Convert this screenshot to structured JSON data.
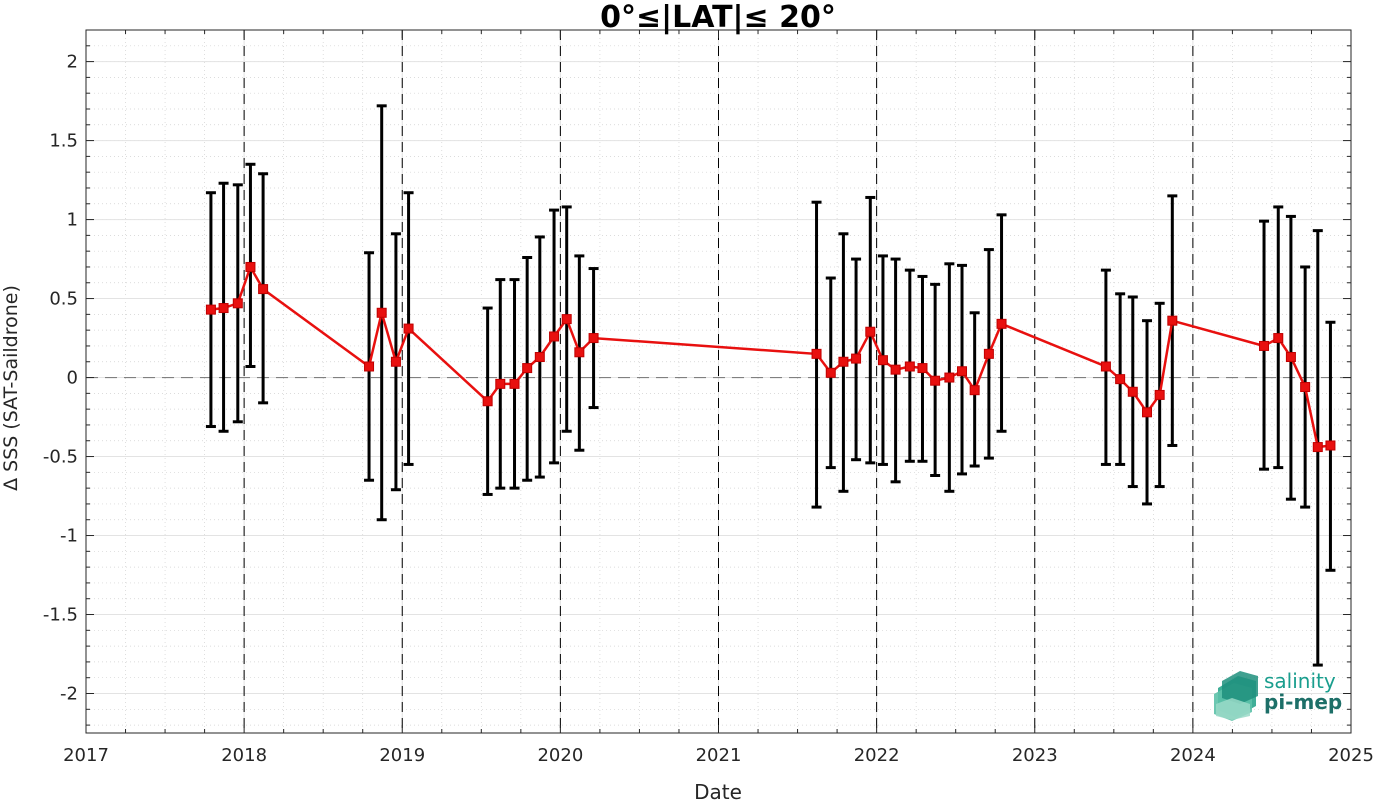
{
  "chart_data": {
    "type": "line",
    "title": "0°≤|LAT|≤ 20°",
    "xlabel": "Date",
    "ylabel": "Δ SSS (SAT-Saildrone)",
    "xlim": [
      2017,
      2025
    ],
    "ylim": [
      -2.25,
      2.2
    ],
    "xticks": [
      "2017",
      "2018",
      "2019",
      "2020",
      "2021",
      "2022",
      "2023",
      "2024",
      "2025"
    ],
    "yticks": [
      "2",
      "1.5",
      "1",
      "0.5",
      "0",
      "-0.5",
      "-1",
      "-1.5",
      "-2"
    ],
    "grid": true,
    "zero_line": 0,
    "year_boundaries": [
      "2018",
      "2019",
      "2020",
      "2021",
      "2022",
      "2023",
      "2024"
    ],
    "colors": {
      "series": "#e8100f",
      "errorbar": "#000000",
      "zero_line": "#808080",
      "boundary": "#000000"
    },
    "series": [
      {
        "points": [
          {
            "x": 2017.79,
            "y": 0.43,
            "low": -0.31,
            "high": 1.17
          },
          {
            "x": 2017.87,
            "y": 0.44,
            "low": -0.34,
            "high": 1.23
          },
          {
            "x": 2017.96,
            "y": 0.47,
            "low": -0.28,
            "high": 1.22
          },
          {
            "x": 2018.04,
            "y": 0.7,
            "low": 0.07,
            "high": 1.35
          },
          {
            "x": 2018.12,
            "y": 0.56,
            "low": -0.16,
            "high": 1.29
          },
          {
            "x": 2018.79,
            "y": 0.07,
            "low": -0.65,
            "high": 0.79
          },
          {
            "x": 2018.87,
            "y": 0.41,
            "low": -0.9,
            "high": 1.72
          },
          {
            "x": 2018.96,
            "y": 0.1,
            "low": -0.71,
            "high": 0.91
          },
          {
            "x": 2019.04,
            "y": 0.31,
            "low": -0.55,
            "high": 1.17
          },
          {
            "x": 2019.54,
            "y": -0.15,
            "low": -0.74,
            "high": 0.44
          },
          {
            "x": 2019.62,
            "y": -0.04,
            "low": -0.7,
            "high": 0.62
          },
          {
            "x": 2019.71,
            "y": -0.04,
            "low": -0.7,
            "high": 0.62
          },
          {
            "x": 2019.79,
            "y": 0.06,
            "low": -0.65,
            "high": 0.76
          },
          {
            "x": 2019.87,
            "y": 0.13,
            "low": -0.63,
            "high": 0.89
          },
          {
            "x": 2019.96,
            "y": 0.26,
            "low": -0.54,
            "high": 1.06
          },
          {
            "x": 2020.04,
            "y": 0.37,
            "low": -0.34,
            "high": 1.08
          },
          {
            "x": 2020.12,
            "y": 0.16,
            "low": -0.46,
            "high": 0.77
          },
          {
            "x": 2020.21,
            "y": 0.25,
            "low": -0.19,
            "high": 0.69
          },
          {
            "x": 2021.62,
            "y": 0.15,
            "low": -0.82,
            "high": 1.11
          },
          {
            "x": 2021.71,
            "y": 0.03,
            "low": -0.57,
            "high": 0.63
          },
          {
            "x": 2021.79,
            "y": 0.1,
            "low": -0.72,
            "high": 0.91
          },
          {
            "x": 2021.87,
            "y": 0.12,
            "low": -0.52,
            "high": 0.75
          },
          {
            "x": 2021.96,
            "y": 0.29,
            "low": -0.54,
            "high": 1.14
          },
          {
            "x": 2022.04,
            "y": 0.11,
            "low": -0.55,
            "high": 0.77
          },
          {
            "x": 2022.12,
            "y": 0.05,
            "low": -0.66,
            "high": 0.75
          },
          {
            "x": 2022.21,
            "y": 0.07,
            "low": -0.53,
            "high": 0.68
          },
          {
            "x": 2022.29,
            "y": 0.06,
            "low": -0.53,
            "high": 0.64
          },
          {
            "x": 2022.37,
            "y": -0.02,
            "low": -0.62,
            "high": 0.59
          },
          {
            "x": 2022.46,
            "y": 0.0,
            "low": -0.72,
            "high": 0.72
          },
          {
            "x": 2022.54,
            "y": 0.04,
            "low": -0.61,
            "high": 0.71
          },
          {
            "x": 2022.62,
            "y": -0.08,
            "low": -0.56,
            "high": 0.41
          },
          {
            "x": 2022.71,
            "y": 0.15,
            "low": -0.51,
            "high": 0.81
          },
          {
            "x": 2022.79,
            "y": 0.34,
            "low": -0.34,
            "high": 1.03
          },
          {
            "x": 2023.45,
            "y": 0.07,
            "low": -0.55,
            "high": 0.68
          },
          {
            "x": 2023.54,
            "y": -0.01,
            "low": -0.55,
            "high": 0.53
          },
          {
            "x": 2023.62,
            "y": -0.09,
            "low": -0.69,
            "high": 0.51
          },
          {
            "x": 2023.71,
            "y": -0.22,
            "low": -0.8,
            "high": 0.36
          },
          {
            "x": 2023.79,
            "y": -0.11,
            "low": -0.69,
            "high": 0.47
          },
          {
            "x": 2023.87,
            "y": 0.36,
            "low": -0.43,
            "high": 1.15
          },
          {
            "x": 2024.45,
            "y": 0.2,
            "low": -0.58,
            "high": 0.99
          },
          {
            "x": 2024.54,
            "y": 0.25,
            "low": -0.57,
            "high": 1.08
          },
          {
            "x": 2024.62,
            "y": 0.13,
            "low": -0.77,
            "high": 1.02
          },
          {
            "x": 2024.71,
            "y": -0.06,
            "low": -0.82,
            "high": 0.7
          },
          {
            "x": 2024.79,
            "y": -0.44,
            "low": -1.82,
            "high": 0.93
          },
          {
            "x": 2024.87,
            "y": -0.43,
            "low": -1.22,
            "high": 0.35
          }
        ]
      }
    ]
  },
  "logo": {
    "line1": "salinity",
    "line2": "pi-mep",
    "color": "#1a9e8e"
  }
}
